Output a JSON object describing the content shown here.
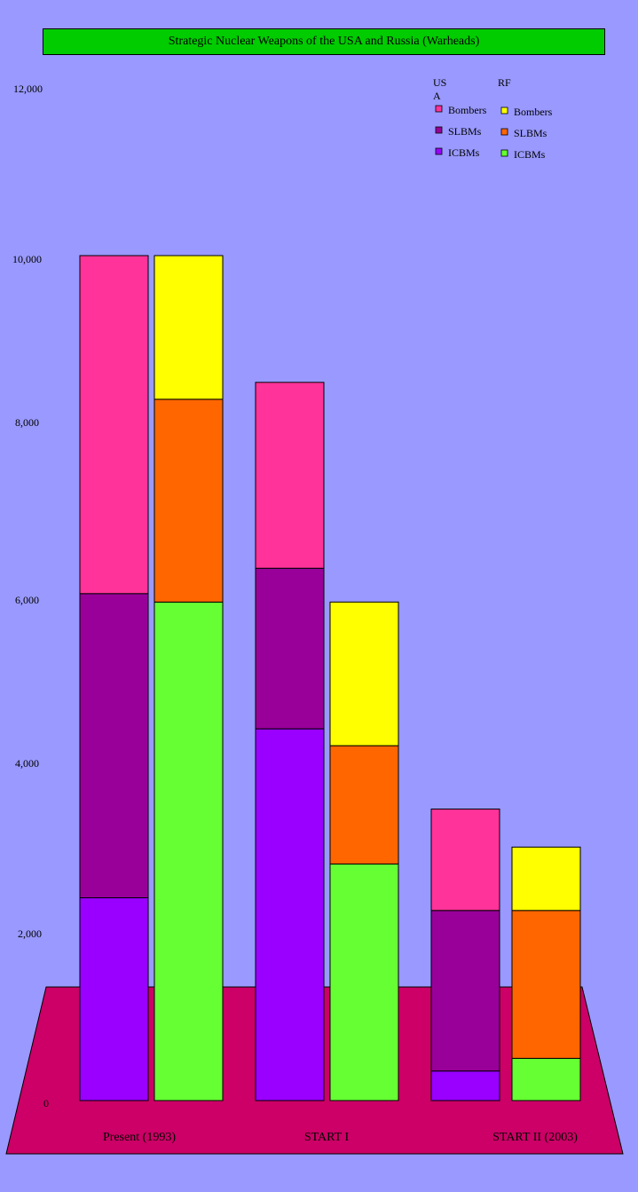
{
  "chart_data": {
    "type": "bar",
    "title": "Strategic Nuclear Weapons of the USA and Russia (Warheads)",
    "y_ticks": [
      "0",
      "2,000",
      "4,000",
      "6,000",
      "8,000",
      "10,000",
      "12,000"
    ],
    "y_tick_values": [
      0,
      2000,
      4000,
      6000,
      8000,
      10000,
      12000
    ],
    "categories": [
      "Present (1993)",
      "START I",
      "START II (2003)"
    ],
    "groups": [
      {
        "name": "USA",
        "legend_header": [
          "US",
          "A"
        ]
      },
      {
        "name": "RF",
        "legend_header": [
          "RF"
        ]
      }
    ],
    "series": [
      {
        "group": "USA",
        "name": "ICBMs",
        "color": "#9900ff",
        "values": [
          2400,
          4400,
          350
        ]
      },
      {
        "group": "USA",
        "name": "SLBMs",
        "color": "#990099",
        "values": [
          3600,
          1900,
          1900
        ]
      },
      {
        "group": "USA",
        "name": "Bombers",
        "color": "#ff3399",
        "values": [
          4000,
          2200,
          1200
        ]
      },
      {
        "group": "RF",
        "name": "ICBMs",
        "color": "#66ff33",
        "values": [
          5900,
          2800,
          500
        ]
      },
      {
        "group": "RF",
        "name": "SLBMs",
        "color": "#ff6600",
        "values": [
          2400,
          1400,
          1750
        ]
      },
      {
        "group": "RF",
        "name": "Bombers",
        "color": "#ffff00",
        "values": [
          1700,
          1700,
          750
        ]
      }
    ],
    "colors": {
      "background": "#9999ff",
      "title_box": "#00cc00",
      "floor": "#cc0066"
    }
  }
}
